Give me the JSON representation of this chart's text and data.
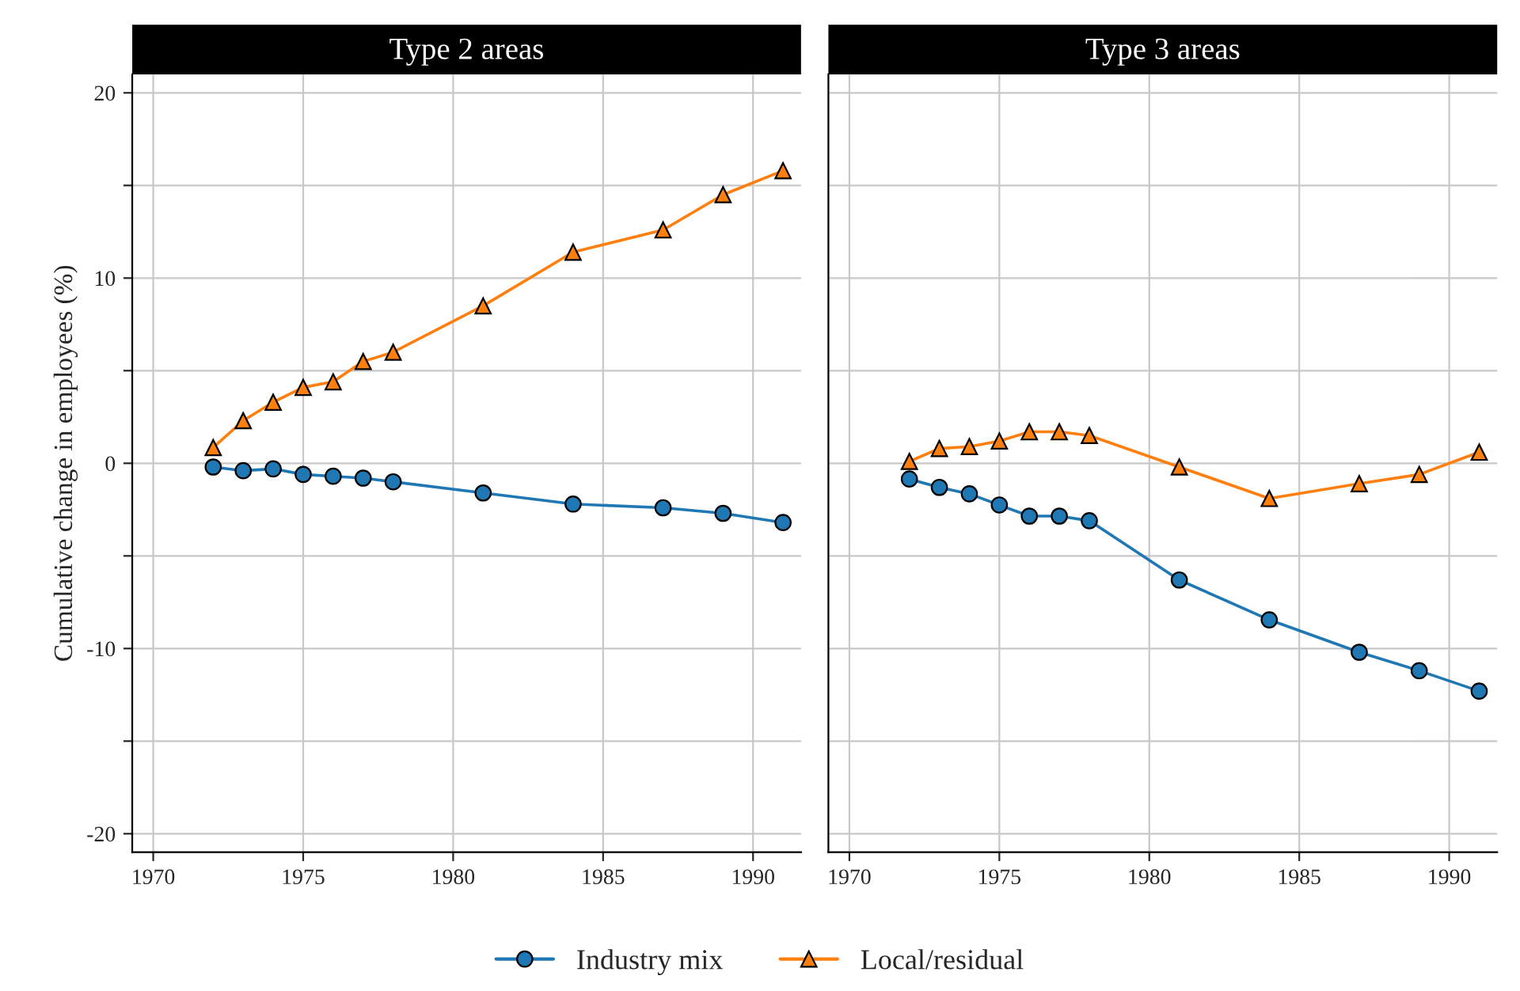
{
  "chart_data": [
    {
      "type": "line",
      "title": "Type 2 areas",
      "ylabel": "Cumulative change in employees (%)",
      "x": [
        1972,
        1973,
        1974,
        1975,
        1976,
        1977,
        1978,
        1981,
        1984,
        1987,
        1989,
        1991
      ],
      "series": [
        {
          "name": "Industry mix",
          "color": "#1f77b4",
          "marker": "circle",
          "values": [
            -0.2,
            -0.4,
            -0.3,
            -0.6,
            -0.7,
            -0.8,
            -1.0,
            -1.6,
            -2.2,
            -2.4,
            -2.7,
            -3.2
          ]
        },
        {
          "name": "Local/residual",
          "color": "#ff7f0e",
          "marker": "triangle",
          "values": [
            0.85,
            2.3,
            3.3,
            4.1,
            4.4,
            5.5,
            6.0,
            8.5,
            11.4,
            12.6,
            14.5,
            15.8
          ]
        }
      ],
      "xlim": [
        1969.3,
        1991.6
      ],
      "xticks": [
        1970,
        1975,
        1980,
        1985,
        1990
      ],
      "ylim": [
        -21,
        21
      ],
      "yticks": [
        -20,
        {
          "value": -15,
          "label": null
        },
        -10,
        {
          "value": -5,
          "label": null
        },
        0,
        {
          "value": 5,
          "label": null
        },
        10,
        {
          "value": 15,
          "label": null
        },
        20
      ],
      "grid": true,
      "legend": "bottom"
    },
    {
      "type": "line",
      "title": "Type 3 areas",
      "x": [
        1972,
        1973,
        1974,
        1975,
        1976,
        1977,
        1978,
        1981,
        1984,
        1987,
        1989,
        1991
      ],
      "series": [
        {
          "name": "Industry mix",
          "color": "#1f77b4",
          "marker": "circle",
          "values": [
            -0.85,
            -1.3,
            -1.65,
            -2.25,
            -2.85,
            -2.85,
            -3.1,
            -6.3,
            -8.45,
            -10.2,
            -11.2,
            -12.3
          ]
        },
        {
          "name": "Local/residual",
          "color": "#ff7f0e",
          "marker": "triangle",
          "values": [
            0.1,
            0.8,
            0.9,
            1.2,
            1.7,
            1.7,
            1.5,
            -0.2,
            -1.9,
            -1.1,
            -0.6,
            0.6
          ]
        }
      ],
      "xlim": [
        1969.3,
        1991.6
      ],
      "xticks": [
        1970,
        1975,
        1980,
        1985,
        1990
      ],
      "ylim": [
        -21,
        21
      ],
      "yticks": [
        -20,
        {
          "value": -15,
          "label": null
        },
        -10,
        {
          "value": -5,
          "label": null
        },
        0,
        {
          "value": 5,
          "label": null
        },
        10,
        {
          "value": 15,
          "label": null
        },
        20
      ],
      "grid": true,
      "tick_labels": "x"
    }
  ]
}
